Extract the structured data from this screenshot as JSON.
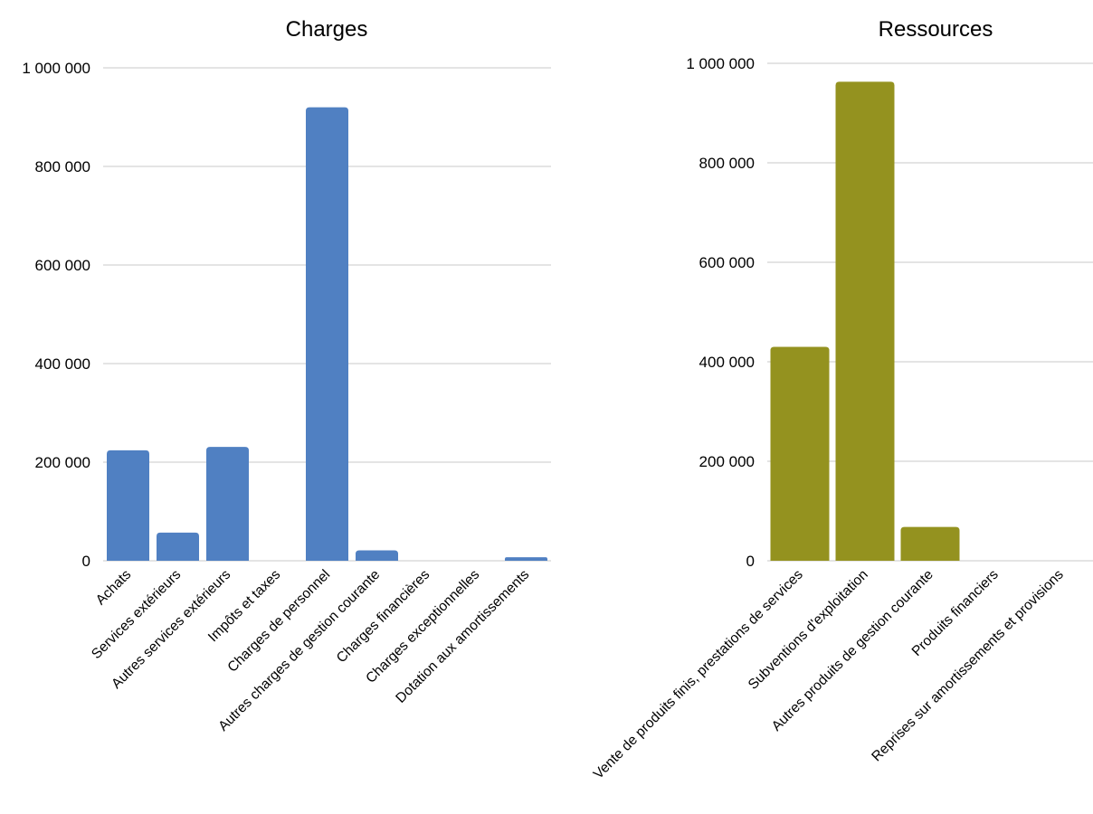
{
  "chart_data": [
    {
      "type": "bar",
      "title": "Charges",
      "categories": [
        "Achats",
        "Services extérieurs",
        "Autres services extérieurs",
        "Impôts et taxes",
        "Charges de personnel",
        "Autres charges de gestion courante",
        "Charges financières",
        "Charges exceptionnelles",
        "Dotation aux amortissements"
      ],
      "values": [
        224000,
        57000,
        231000,
        0,
        920000,
        21000,
        0,
        0,
        7000
      ],
      "ylim": [
        0,
        1000000
      ],
      "yticks": [
        0,
        200000,
        400000,
        600000,
        800000,
        1000000
      ],
      "ytick_labels": [
        "0",
        "200 000",
        "400 000",
        "600 000",
        "800 000",
        "1 000 000"
      ],
      "color": "#5080c2",
      "grid": true,
      "legend": "none"
    },
    {
      "type": "bar",
      "title": "Ressources",
      "categories": [
        "Vente de produits finis, prestations de services",
        "Subventions d'exploitation",
        "Autres produits de gestion courante",
        "Produits financiers",
        "Reprises sur amortissements et provisions"
      ],
      "values": [
        430000,
        963000,
        68000,
        0,
        0
      ],
      "ylim": [
        0,
        1000000
      ],
      "yticks": [
        0,
        200000,
        400000,
        600000,
        800000,
        1000000
      ],
      "ytick_labels": [
        "0",
        "200 000",
        "400 000",
        "600 000",
        "800 000",
        "1 000 000"
      ],
      "color": "#94921f",
      "grid": true,
      "legend": "none"
    }
  ]
}
